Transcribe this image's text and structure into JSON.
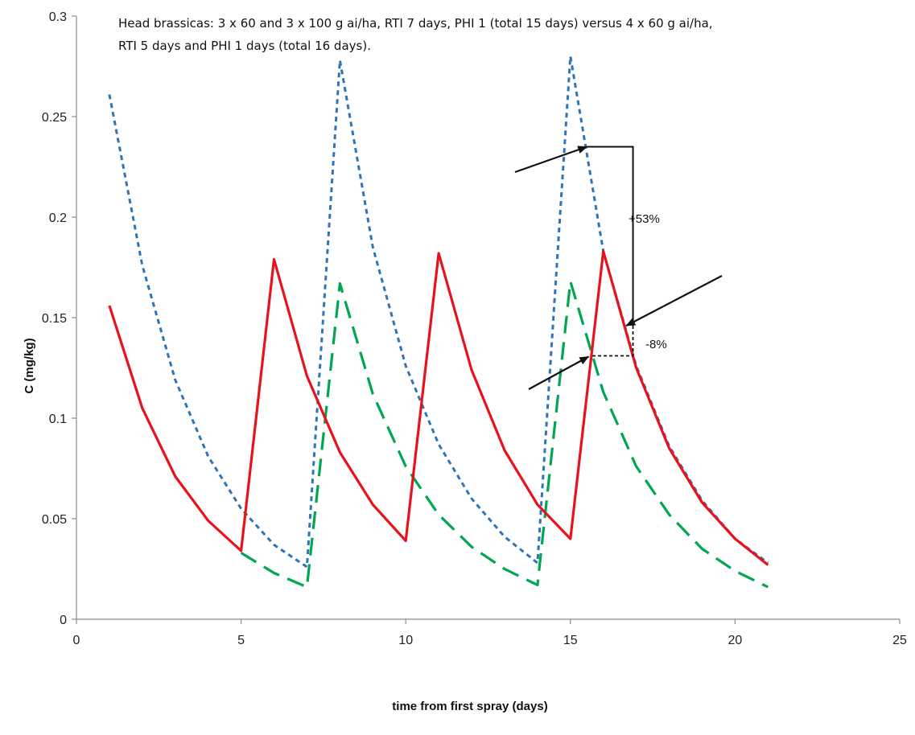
{
  "chart_data": {
    "type": "line",
    "title": "",
    "xlabel": "time from first spray (days)",
    "ylabel": "C (mg/kg)",
    "xlim": [
      0,
      25
    ],
    "ylim": [
      0,
      0.3
    ],
    "xticks": [
      0,
      5,
      10,
      15,
      20,
      25
    ],
    "yticks": [
      0,
      0.05,
      0.1,
      0.15,
      0.2,
      0.25,
      0.3
    ],
    "xtick_labels": [
      "0",
      "5",
      "10",
      "15",
      "20",
      "25"
    ],
    "ytick_labels": [
      "0",
      "0.05",
      "0.1",
      "0.15",
      "0.2",
      "0.25",
      "0.3"
    ],
    "grid": false,
    "legend": "none",
    "series": [
      {
        "color": "#2e75b6",
        "style": "short-dash",
        "points": [
          [
            1,
            0.261
          ],
          [
            2,
            0.176
          ],
          [
            3,
            0.119
          ],
          [
            4,
            0.081
          ],
          [
            5,
            0.055
          ],
          [
            6,
            0.037
          ],
          [
            7,
            0.026
          ],
          [
            8,
            0.278
          ],
          [
            9,
            0.185
          ],
          [
            10,
            0.126
          ],
          [
            11,
            0.087
          ],
          [
            12,
            0.06
          ],
          [
            13,
            0.041
          ],
          [
            14,
            0.028
          ],
          [
            15,
            0.28
          ],
          [
            16,
            0.183
          ],
          [
            17,
            0.126
          ],
          [
            18,
            0.086
          ],
          [
            19,
            0.059
          ],
          [
            20,
            0.04
          ],
          [
            21,
            0.028
          ]
        ]
      },
      {
        "color": "#00a651",
        "style": "long-dash",
        "points": [
          [
            5,
            0.033
          ],
          [
            6,
            0.023
          ],
          [
            7,
            0.016
          ],
          [
            8,
            0.167
          ],
          [
            9,
            0.112
          ],
          [
            10,
            0.076
          ],
          [
            11,
            0.052
          ],
          [
            12,
            0.036
          ],
          [
            13,
            0.025
          ],
          [
            14,
            0.017
          ],
          [
            15,
            0.168
          ],
          [
            16,
            0.113
          ],
          [
            17,
            0.076
          ],
          [
            18,
            0.052
          ],
          [
            19,
            0.035
          ],
          [
            20,
            0.024
          ],
          [
            21,
            0.016
          ]
        ]
      },
      {
        "color": "#e8121b",
        "style": "solid",
        "points": [
          [
            1,
            0.156
          ],
          [
            2,
            0.105
          ],
          [
            3,
            0.071
          ],
          [
            4,
            0.049
          ],
          [
            5,
            0.034
          ],
          [
            6,
            0.179
          ],
          [
            7,
            0.121
          ],
          [
            8,
            0.083
          ],
          [
            9,
            0.057
          ],
          [
            10,
            0.039
          ],
          [
            11,
            0.182
          ],
          [
            12,
            0.124
          ],
          [
            13,
            0.084
          ],
          [
            14,
            0.057
          ],
          [
            15,
            0.04
          ],
          [
            16,
            0.183
          ],
          [
            17,
            0.125
          ],
          [
            18,
            0.085
          ],
          [
            19,
            0.058
          ],
          [
            20,
            0.04
          ],
          [
            21,
            0.027
          ]
        ]
      }
    ],
    "annotations": {
      "note_lines": [
        "Head brassicas: 3 x 60 and 3 x 100 g ai/ha, RTI 7 days, PHI 1 (total 15 days) versus  4 x 60  g ai/ha,",
        "RTI 5 days and PHI 1 days (total 16 days)."
      ],
      "plus_label": "+53%",
      "minus_label": "-8%",
      "blue_mark": [
        15.5,
        0.235
      ],
      "red_mark": [
        16.6,
        0.146
      ],
      "green_mark": [
        15.6,
        0.131
      ],
      "bracket_x": 16.9
    }
  }
}
